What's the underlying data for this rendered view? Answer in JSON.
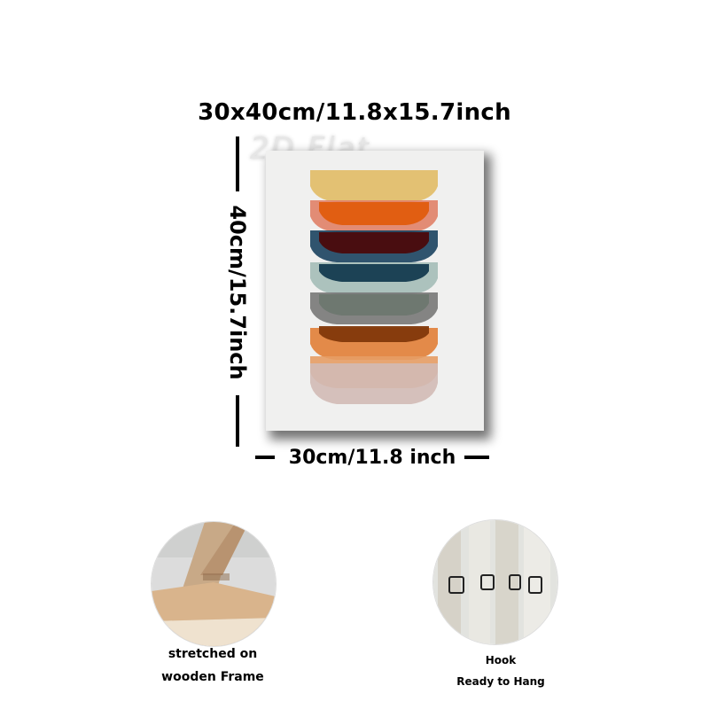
{
  "dimensions": {
    "title": "30x40cm/11.8x15.7inch",
    "height_label": "40cm/15.7inch",
    "width_label": "30cm/11.8 inch"
  },
  "watermark": "2D Flat",
  "artwork": {
    "bowl_colors": [
      "#f1ca74",
      "#f08a6f",
      "#f0620e",
      "#1d4766",
      "#4f0a0c",
      "#b3cbc7",
      "#153f55",
      "#7f7f7f",
      "#6f7d72",
      "#f18a3f",
      "#8a3c0a",
      "#f5a76c",
      "#e0c7c2"
    ]
  },
  "features": [
    {
      "icon": "wooden-frame-photo",
      "caption_line1": "stretched on",
      "caption_line2": "wooden Frame"
    },
    {
      "icon": "hook-photo",
      "caption_line1": "Hook",
      "caption_line2": "Ready to Hang"
    }
  ]
}
